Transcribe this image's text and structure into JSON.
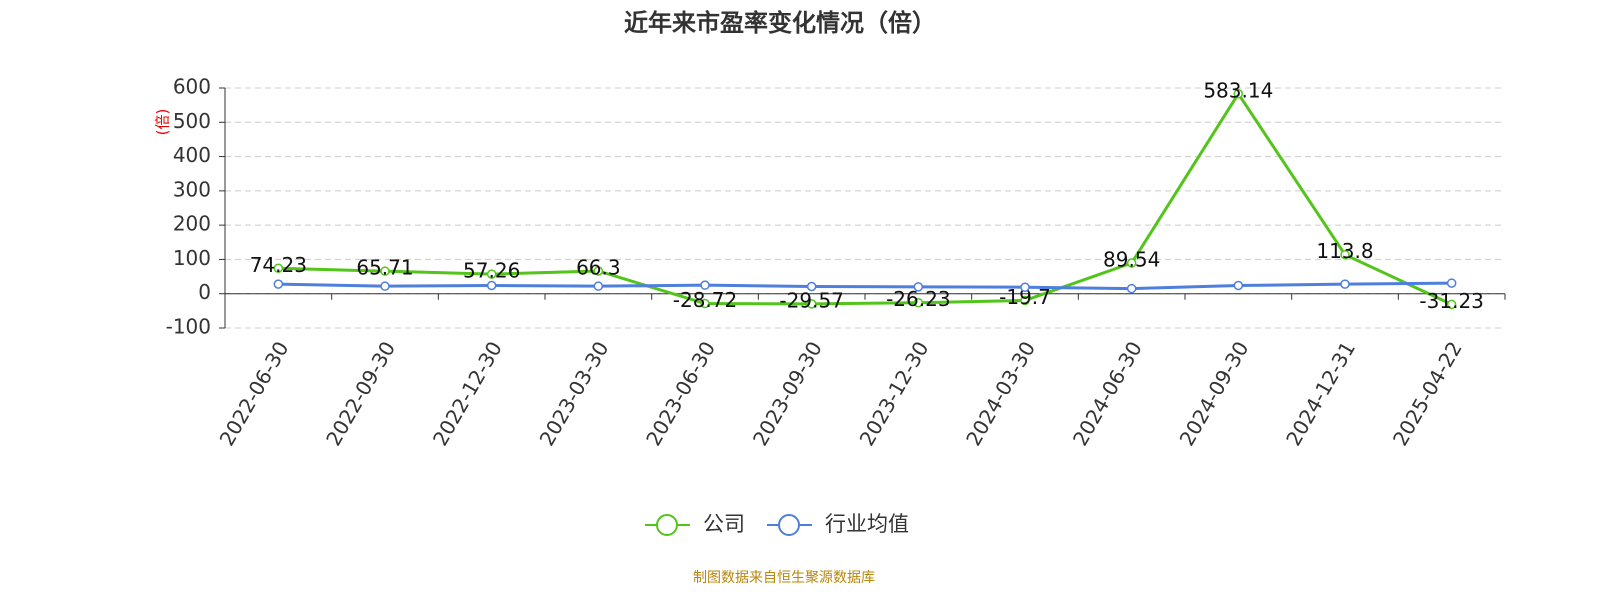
{
  "chart_data": {
    "type": "line",
    "title": "近年来市盈率变化情况（倍）",
    "y_label": "(倍)",
    "categories": [
      "2022-06-30",
      "2022-09-30",
      "2022-12-30",
      "2023-03-30",
      "2023-06-30",
      "2023-09-30",
      "2023-12-30",
      "2024-03-30",
      "2024-06-30",
      "2024-09-30",
      "2024-12-31",
      "2025-04-22"
    ],
    "series": [
      {
        "name": "公司",
        "color": "#52c41a",
        "values": [
          74.23,
          65.71,
          57.26,
          66.3,
          -28.72,
          -29.57,
          -26.23,
          -19.7,
          89.54,
          583.14,
          113.8,
          -31.23
        ],
        "show_labels": true
      },
      {
        "name": "行业均值",
        "color": "#4e7fdc",
        "values": [
          28,
          22,
          24,
          22,
          25,
          21,
          20,
          19,
          15,
          24,
          28,
          31
        ],
        "show_labels": false
      }
    ],
    "ylim": [
      -100,
      600
    ],
    "yticks": [
      -100,
      0,
      100,
      200,
      300,
      400,
      500,
      600
    ],
    "grid": true,
    "source": "制图数据来自恒生聚源数据库"
  }
}
